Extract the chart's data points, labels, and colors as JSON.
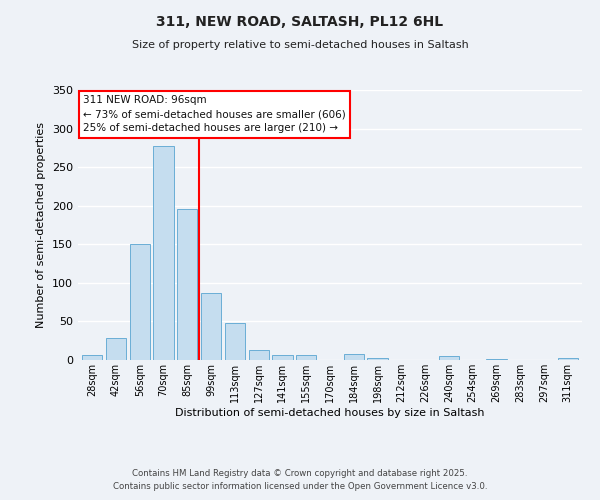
{
  "title_line1": "311, NEW ROAD, SALTASH, PL12 6HL",
  "title_line2": "Size of property relative to semi-detached houses in Saltash",
  "bar_labels": [
    "28sqm",
    "42sqm",
    "56sqm",
    "70sqm",
    "85sqm",
    "99sqm",
    "113sqm",
    "127sqm",
    "141sqm",
    "155sqm",
    "170sqm",
    "184sqm",
    "198sqm",
    "212sqm",
    "226sqm",
    "240sqm",
    "254sqm",
    "269sqm",
    "283sqm",
    "297sqm",
    "311sqm"
  ],
  "bar_values": [
    6,
    28,
    150,
    278,
    196,
    87,
    48,
    13,
    6,
    7,
    0,
    8,
    3,
    0,
    0,
    5,
    0,
    1,
    0,
    0,
    2
  ],
  "bar_color": "#c5ddef",
  "bar_edge_color": "#6aaed6",
  "background_color": "#eef2f7",
  "grid_color": "#ffffff",
  "ylabel": "Number of semi-detached properties",
  "xlabel": "Distribution of semi-detached houses by size in Saltash",
  "ylim": [
    0,
    350
  ],
  "yticks": [
    0,
    50,
    100,
    150,
    200,
    250,
    300,
    350
  ],
  "annotation_line1": "311 NEW ROAD: 96sqm",
  "annotation_line2": "← 73% of semi-detached houses are smaller (606)",
  "annotation_line3": "25% of semi-detached houses are larger (210) →",
  "vline_pos": 4.5,
  "footer_line1": "Contains HM Land Registry data © Crown copyright and database right 2025.",
  "footer_line2": "Contains public sector information licensed under the Open Government Licence v3.0."
}
